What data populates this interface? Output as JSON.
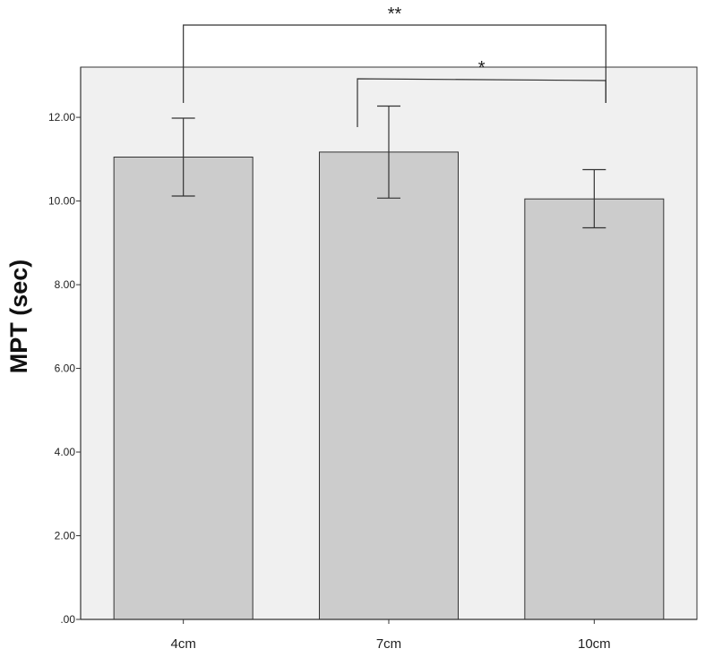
{
  "chart_data": {
    "type": "bar",
    "categories": [
      "4cm",
      "7cm",
      "10cm"
    ],
    "values": [
      11.05,
      11.17,
      10.05
    ],
    "error_bars": [
      {
        "lower": 10.12,
        "upper": 11.98
      },
      {
        "lower": 10.07,
        "upper": 12.27
      },
      {
        "lower": 9.36,
        "upper": 10.75
      }
    ],
    "ylabel": "MPT (sec)",
    "xlabel": "",
    "ylim": [
      0,
      13.2
    ],
    "yticks": [
      0,
      2,
      4,
      6,
      8,
      10,
      12
    ],
    "ytick_labels": [
      ".00",
      "2.00",
      "4.00",
      "6.00",
      "8.00",
      "10.00",
      "12.00"
    ],
    "grid": false,
    "colors": {
      "bar": "#cccccc",
      "plot_background": "#f0f0f0",
      "outline": "#333333"
    },
    "significance": [
      {
        "from": "4cm",
        "to": "10cm",
        "label": "**"
      },
      {
        "from": "7cm",
        "to": "10cm",
        "label": "*"
      }
    ]
  }
}
